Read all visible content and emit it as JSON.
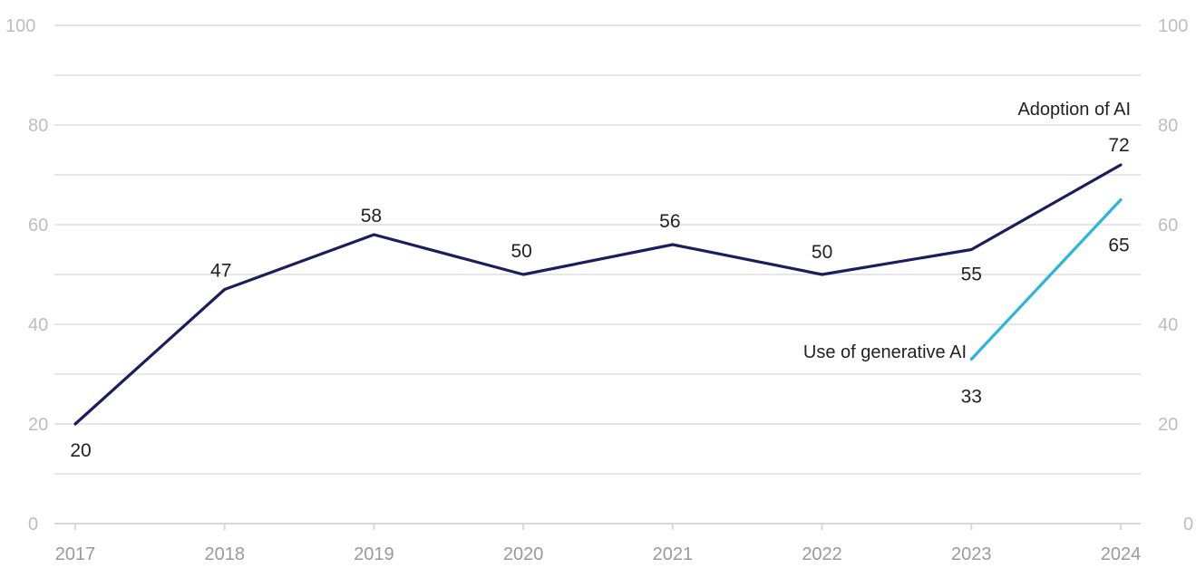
{
  "chart_data": {
    "type": "line",
    "title": "",
    "xlabel": "",
    "ylabel": "",
    "ylim": [
      0,
      100
    ],
    "yticks": [
      0,
      20,
      40,
      60,
      80,
      100
    ],
    "x": [
      "2017",
      "2018",
      "2019",
      "2020",
      "2021",
      "2022",
      "2023",
      "2024"
    ],
    "grid": true,
    "legend": "inline-labels",
    "series": [
      {
        "name": "Adoption of AI",
        "x": [
          "2017",
          "2018",
          "2019",
          "2020",
          "2021",
          "2022",
          "2023",
          "2024"
        ],
        "values": [
          20,
          47,
          58,
          50,
          56,
          50,
          55,
          72
        ],
        "color": "#1b1e5c"
      },
      {
        "name": "Use of generative AI",
        "x": [
          "2023",
          "2024"
        ],
        "values": [
          33,
          65
        ],
        "color": "#2bb5d8"
      }
    ]
  },
  "colors": {
    "grid": "#e6e6e6",
    "axis": "#d8d8d8",
    "tick_text": "#bdbdbd",
    "x_tick_text": "#9a9a9a",
    "label_text": "#222222"
  }
}
